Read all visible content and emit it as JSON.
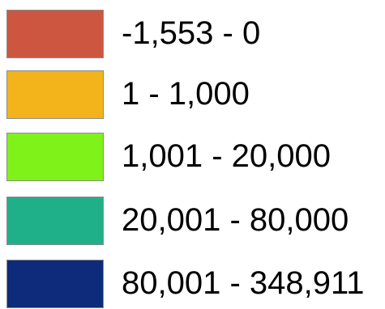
{
  "legend": {
    "items": [
      {
        "label": "-1,553 - 0",
        "color": "#cd5640"
      },
      {
        "label": "1 - 1,000",
        "color": "#f2b41a"
      },
      {
        "label": "1,001 - 20,000",
        "color": "#7ff21a"
      },
      {
        "label": "20,001 - 80,000",
        "color": "#20b089"
      },
      {
        "label": "80,001 - 348,911",
        "color": "#0e2a7a"
      }
    ]
  }
}
